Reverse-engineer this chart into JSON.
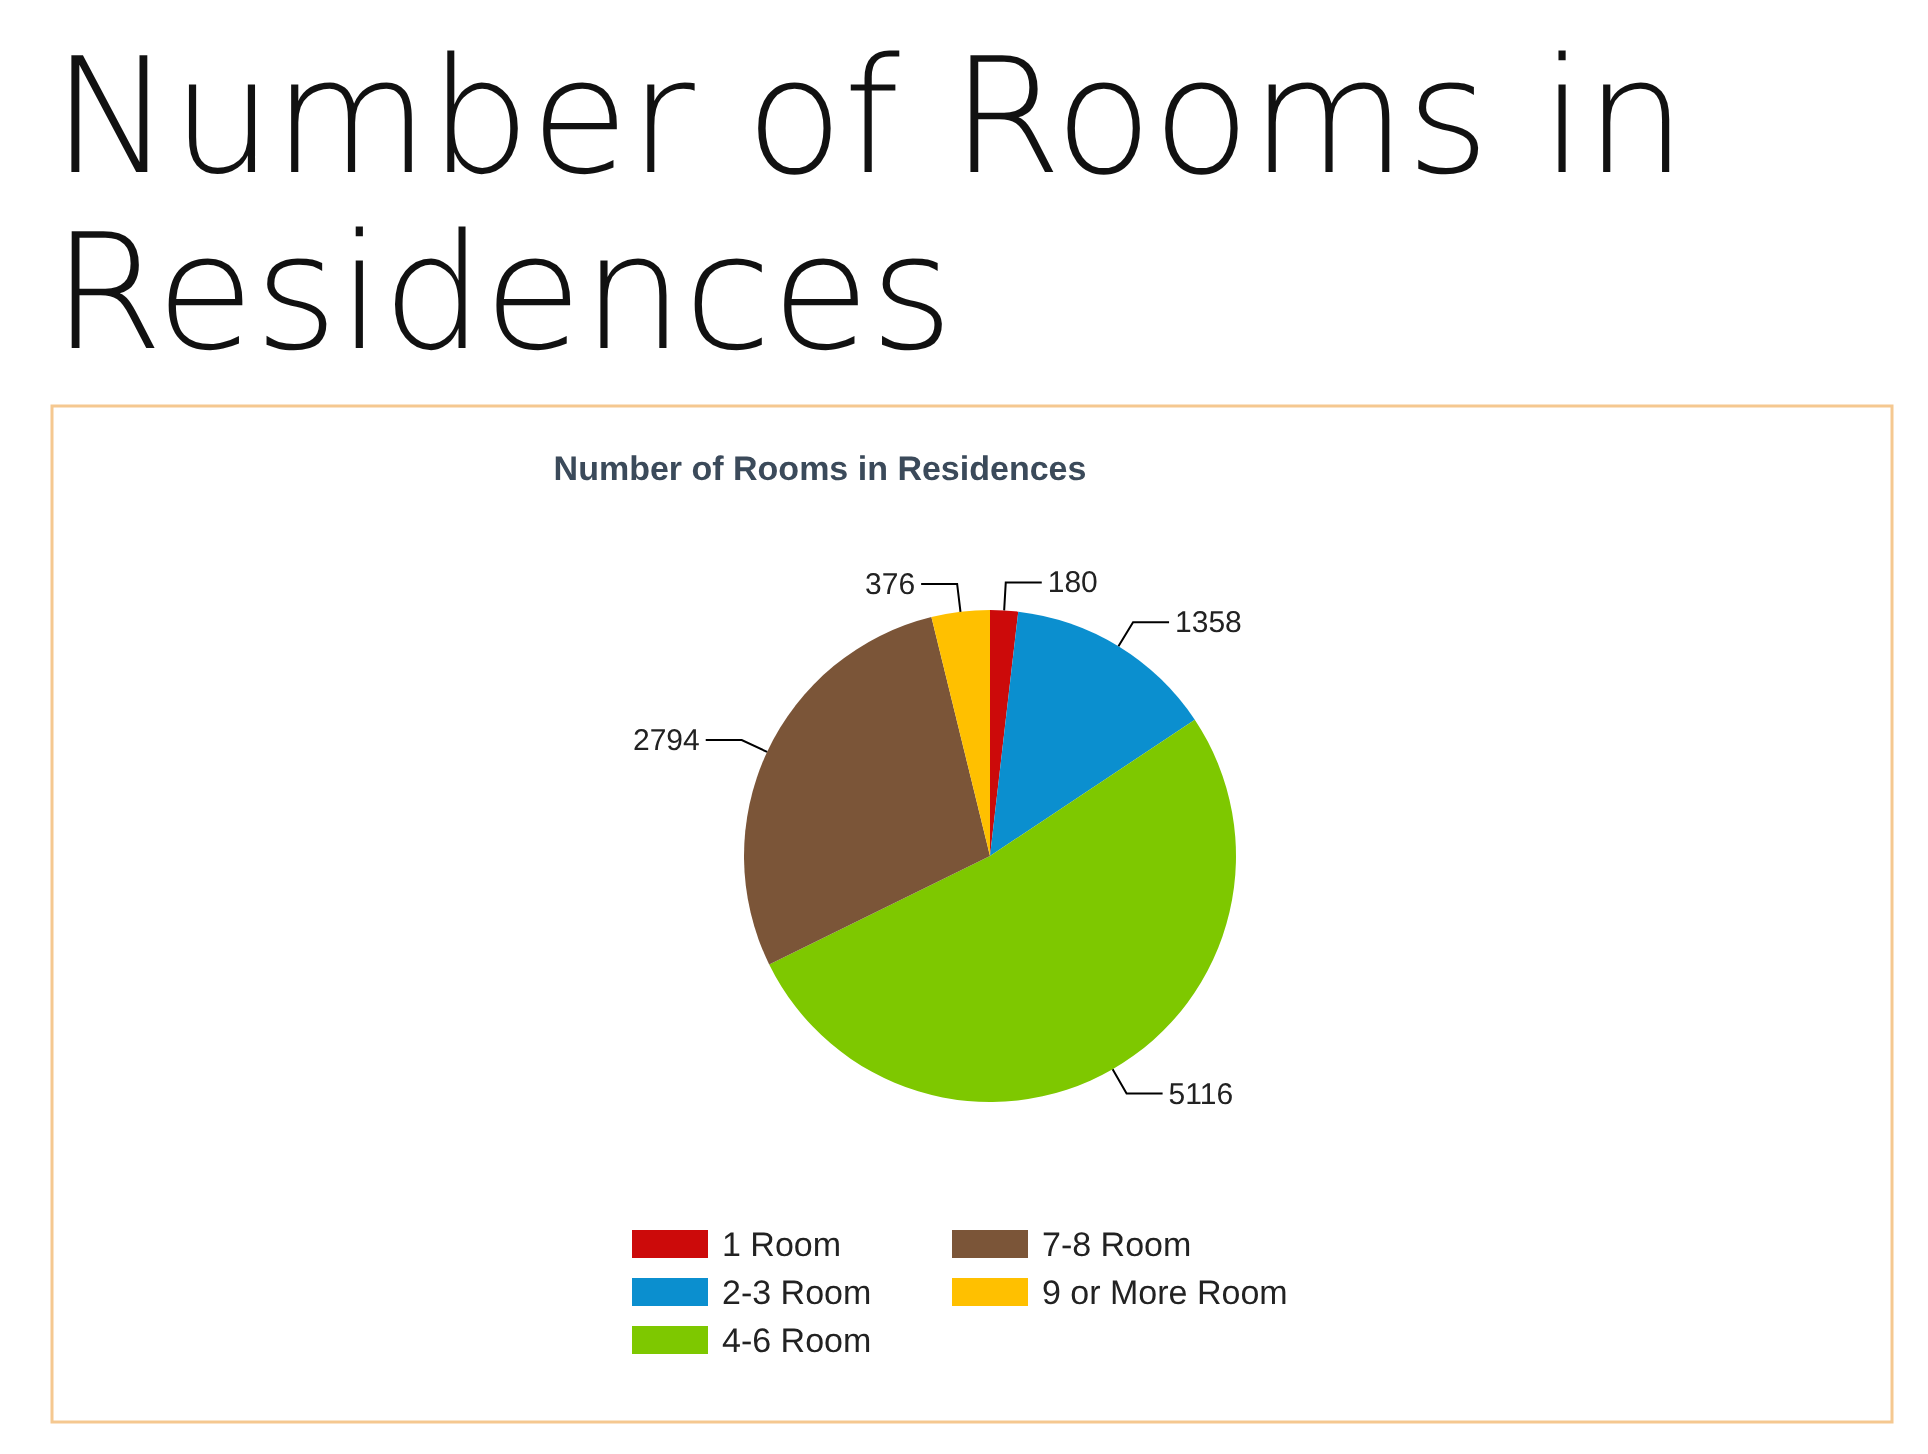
{
  "chart_data": {
    "type": "pie",
    "title": "Number of Rooms in Residences",
    "subtitle": "Number of Rooms in Residences",
    "categories": [
      "1 Room",
      "2-3 Room",
      "4-6 Room",
      "7-8 Room",
      "9 or More Room"
    ],
    "values": [
      180,
      1358,
      5116,
      2794,
      376
    ],
    "colors": [
      "#cc0a0a",
      "#0b8fcf",
      "#7ec800",
      "#7b5538",
      "#ffc000"
    ],
    "data_labels": true,
    "legend": "bottom"
  }
}
